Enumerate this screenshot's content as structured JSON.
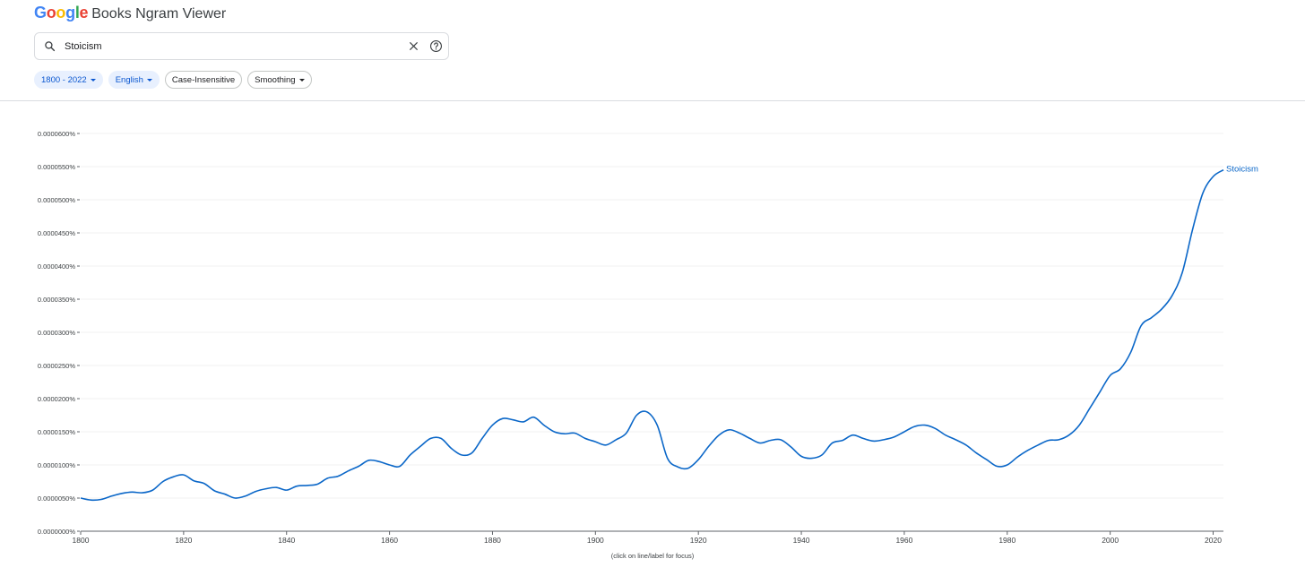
{
  "app": {
    "logo_text": "Google",
    "product_name": "Books Ngram Viewer"
  },
  "search": {
    "query": "Stoicism",
    "icons": [
      "search-icon",
      "close-icon",
      "help-icon"
    ]
  },
  "filters": {
    "year_range": "1800 - 2022",
    "corpus": "English",
    "case": "Case-Insensitive",
    "smoothing": "Smoothing"
  },
  "colors": {
    "series_line": "#0b67c8",
    "accent_chip_bg": "#e8f0fe",
    "accent_chip_text": "#0b57d0",
    "grid": "#f0f0f0"
  },
  "chart_data": {
    "type": "line",
    "xlim": [
      1800,
      2022
    ],
    "ylim": [
      0,
      6e-05
    ],
    "y_unit": "%",
    "x_ticks": [
      1800,
      1820,
      1840,
      1860,
      1880,
      1900,
      1920,
      1940,
      1960,
      1980,
      2000,
      2020
    ],
    "y_ticks": [
      "0.0000000%",
      "0.0000050%",
      "0.0000100%",
      "0.0000150%",
      "0.0000200%",
      "0.0000250%",
      "0.0000300%",
      "0.0000350%",
      "0.0000400%",
      "0.0000450%",
      "0.0000500%",
      "0.0000550%",
      "0.0000600%"
    ],
    "grid": true,
    "footnote": "(click on line/label for focus)",
    "series": [
      {
        "name": "Stoicism",
        "x": [
          1800,
          1802,
          1804,
          1806,
          1808,
          1810,
          1812,
          1814,
          1816,
          1818,
          1820,
          1822,
          1824,
          1826,
          1828,
          1830,
          1832,
          1834,
          1836,
          1838,
          1840,
          1842,
          1844,
          1846,
          1848,
          1850,
          1852,
          1854,
          1856,
          1858,
          1860,
          1862,
          1864,
          1866,
          1868,
          1870,
          1872,
          1874,
          1876,
          1878,
          1880,
          1882,
          1884,
          1886,
          1888,
          1890,
          1892,
          1894,
          1896,
          1898,
          1900,
          1902,
          1904,
          1906,
          1908,
          1910,
          1912,
          1914,
          1916,
          1918,
          1920,
          1922,
          1924,
          1926,
          1928,
          1930,
          1932,
          1934,
          1936,
          1938,
          1940,
          1942,
          1944,
          1946,
          1948,
          1950,
          1952,
          1954,
          1956,
          1958,
          1960,
          1962,
          1964,
          1966,
          1968,
          1970,
          1972,
          1974,
          1976,
          1978,
          1980,
          1982,
          1984,
          1986,
          1988,
          1990,
          1992,
          1994,
          1996,
          1998,
          2000,
          2002,
          2004,
          2006,
          2008,
          2010,
          2012,
          2014,
          2016,
          2018,
          2020,
          2022
        ],
        "y": [
          5e-06,
          4.7e-06,
          4.8e-06,
          5.3e-06,
          5.7e-06,
          5.9e-06,
          5.8e-06,
          6.2e-06,
          7.5e-06,
          8.2e-06,
          8.5e-06,
          7.6e-06,
          7.2e-06,
          6.1e-06,
          5.6e-06,
          5e-06,
          5.3e-06,
          6e-06,
          6.4e-06,
          6.6e-06,
          6.2e-06,
          6.8e-06,
          6.9e-06,
          7.1e-06,
          8e-06,
          8.3e-06,
          9.1e-06,
          9.8e-06,
          1.07e-05,
          1.05e-05,
          1e-05,
          9.8e-06,
          1.15e-05,
          1.28e-05,
          1.4e-05,
          1.4e-05,
          1.25e-05,
          1.15e-05,
          1.18e-05,
          1.4e-05,
          1.6e-05,
          1.7e-05,
          1.68e-05,
          1.65e-05,
          1.72e-05,
          1.6e-05,
          1.5e-05,
          1.47e-05,
          1.48e-05,
          1.4e-05,
          1.35e-05,
          1.3e-05,
          1.38e-05,
          1.48e-05,
          1.75e-05,
          1.8e-05,
          1.6e-05,
          1.1e-05,
          9.7e-06,
          9.5e-06,
          1.08e-05,
          1.28e-05,
          1.45e-05,
          1.53e-05,
          1.48e-05,
          1.4e-05,
          1.33e-05,
          1.37e-05,
          1.38e-05,
          1.27e-05,
          1.13e-05,
          1.1e-05,
          1.15e-05,
          1.33e-05,
          1.37e-05,
          1.45e-05,
          1.4e-05,
          1.36e-05,
          1.38e-05,
          1.42e-05,
          1.5e-05,
          1.58e-05,
          1.6e-05,
          1.55e-05,
          1.45e-05,
          1.38e-05,
          1.3e-05,
          1.18e-05,
          1.08e-05,
          9.8e-06,
          1e-05,
          1.12e-05,
          1.22e-05,
          1.3e-05,
          1.37e-05,
          1.38e-05,
          1.45e-05,
          1.6e-05,
          1.85e-05,
          2.1e-05,
          2.35e-05,
          2.45e-05,
          2.7e-05,
          3.1e-05,
          3.22e-05,
          3.35e-05,
          3.55e-05,
          3.9e-05,
          4.55e-05,
          5.1e-05,
          5.35e-05,
          5.45e-05
        ]
      }
    ]
  }
}
